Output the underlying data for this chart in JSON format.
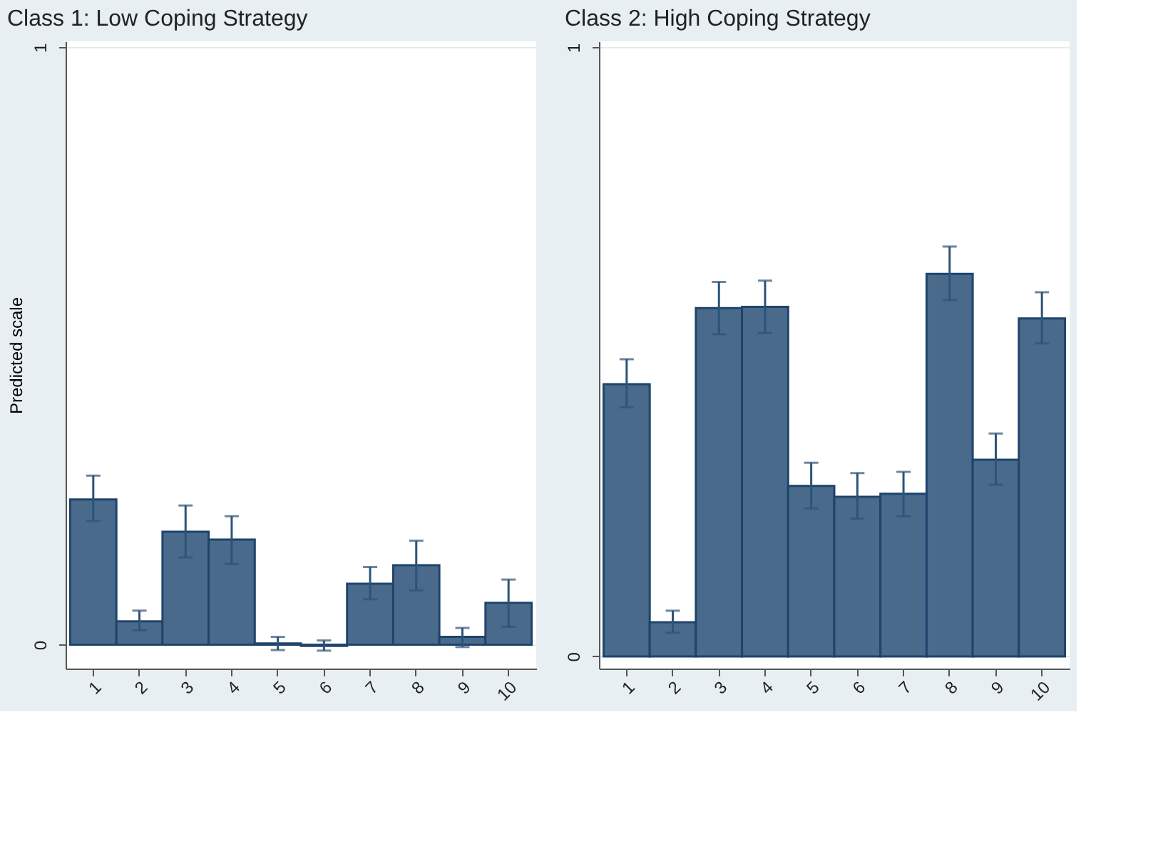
{
  "chart_data": [
    {
      "type": "bar",
      "title": "Class 1: Low Coping Strategy",
      "ylabel": "Predicted scale",
      "categories": [
        "1",
        "2",
        "3",
        "4",
        "5",
        "6",
        "7",
        "8",
        "9",
        "10"
      ],
      "series": [
        {
          "color": "#496a8b",
          "values": [
            0.243,
            0.039,
            0.189,
            0.176,
            0.002,
            -0.002,
            0.102,
            0.133,
            0.013,
            0.07
          ],
          "errors": [
            [
              0.207,
              0.283
            ],
            [
              0.024,
              0.057
            ],
            [
              0.146,
              0.233
            ],
            [
              0.135,
              0.215
            ],
            [
              -0.009,
              0.013
            ],
            [
              -0.01,
              0.007
            ],
            [
              0.076,
              0.13
            ],
            [
              0.091,
              0.174
            ],
            [
              -0.004,
              0.028
            ],
            [
              0.03,
              0.109
            ]
          ]
        }
      ],
      "ylim": [
        -0.04,
        1.01
      ],
      "yticks": [
        0,
        1
      ],
      "grid": "y"
    },
    {
      "type": "bar",
      "title": "Class 2: High Coping Strategy",
      "categories": [
        "1",
        "2",
        "3",
        "4",
        "5",
        "6",
        "7",
        "8",
        "9",
        "10"
      ],
      "series": [
        {
          "color": "#496a8b",
          "values": [
            0.447,
            0.056,
            0.572,
            0.574,
            0.28,
            0.262,
            0.267,
            0.628,
            0.323,
            0.555
          ],
          "errors": [
            [
              0.409,
              0.488
            ],
            [
              0.039,
              0.075
            ],
            [
              0.529,
              0.615
            ],
            [
              0.531,
              0.617
            ],
            [
              0.243,
              0.318
            ],
            [
              0.226,
              0.301
            ],
            [
              0.23,
              0.303
            ],
            [
              0.585,
              0.673
            ],
            [
              0.282,
              0.366
            ],
            [
              0.514,
              0.598
            ]
          ]
        }
      ],
      "ylim": [
        -0.02,
        1.01
      ],
      "yticks": [
        0,
        1
      ],
      "grid": "y"
    }
  ]
}
